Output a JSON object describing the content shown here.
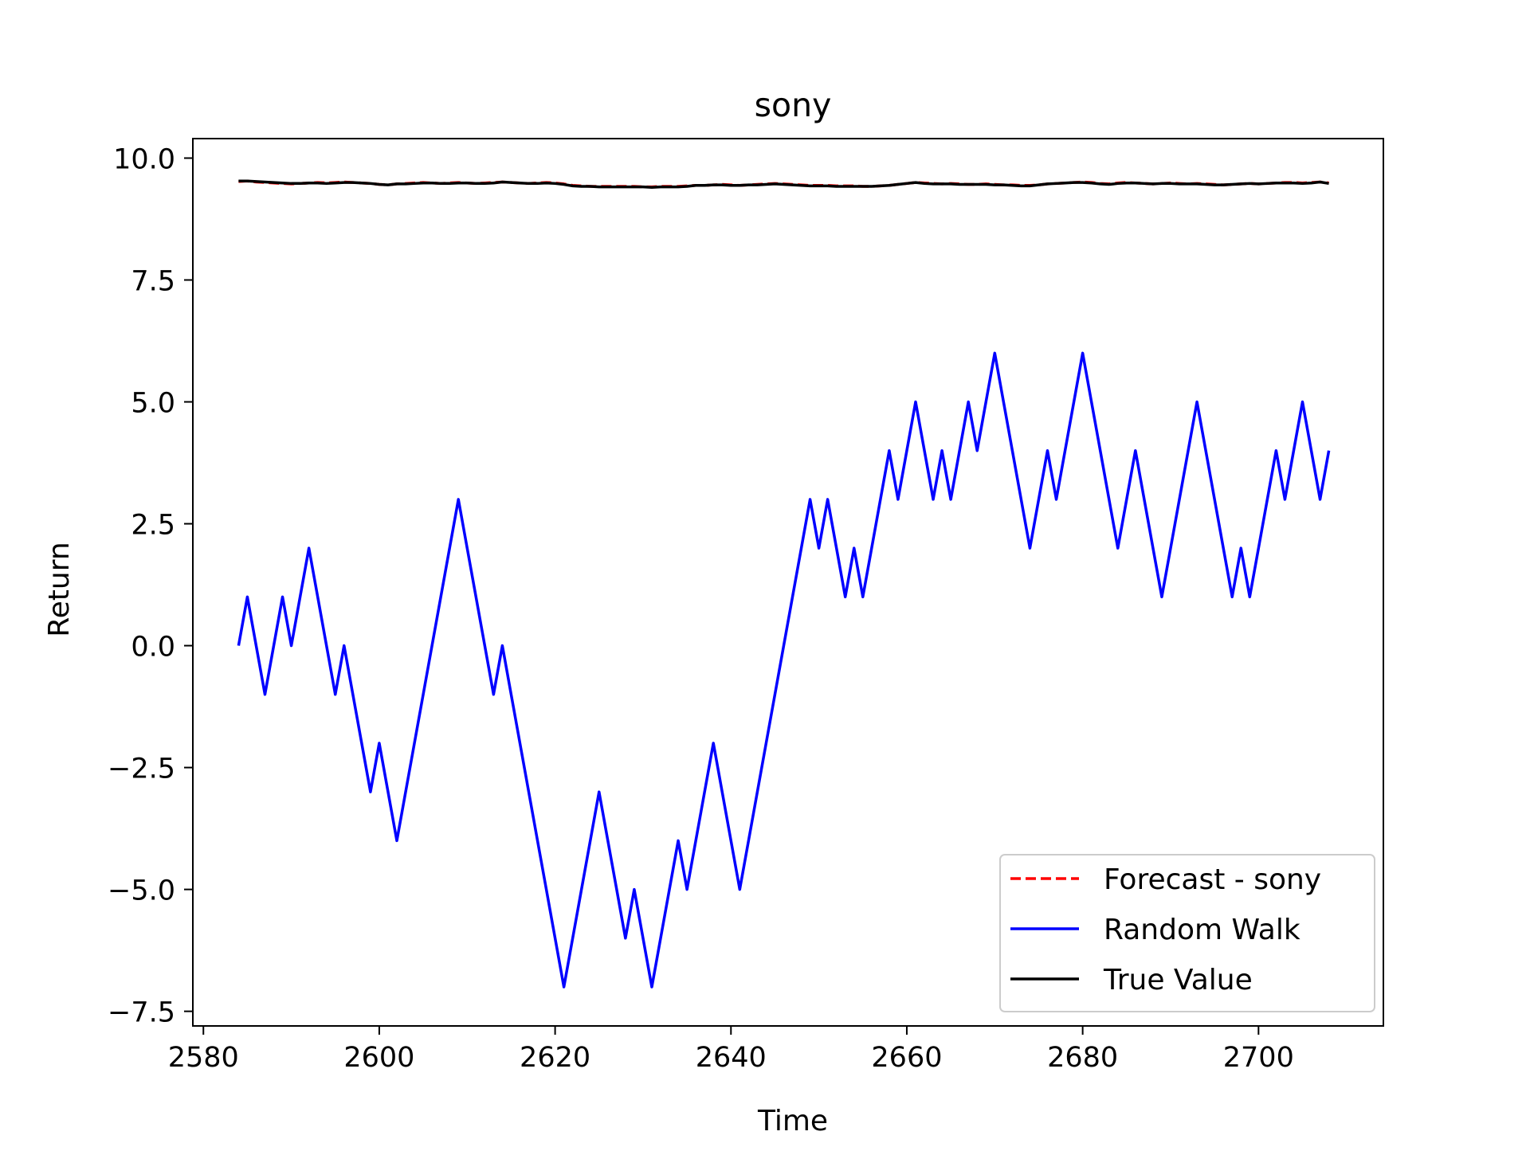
{
  "chart_data": {
    "type": "line",
    "title": "sony",
    "xlabel": "Time",
    "ylabel": "Return",
    "xlim": [
      2578.8,
      2714.2
    ],
    "ylim": [
      -7.8,
      10.4
    ],
    "xticks": [
      2580,
      2600,
      2620,
      2640,
      2660,
      2680,
      2700
    ],
    "yticks": [
      10.0,
      7.5,
      5.0,
      2.5,
      0.0,
      -2.5,
      -5.0,
      -7.5
    ],
    "ytick_labels": [
      "10.0",
      "7.5",
      "5.0",
      "2.5",
      "0.0",
      "−2.5",
      "−5.0",
      "−7.5"
    ],
    "grid": false,
    "legend_position": "lower-right",
    "x_start": 2584,
    "series": [
      {
        "name": "Forecast - sony",
        "color": "#ff0000",
        "style": "dashed",
        "values": [
          9.52,
          9.53,
          9.51,
          9.5,
          9.49,
          9.48,
          9.47,
          9.48,
          9.49,
          9.5,
          9.49,
          9.5,
          9.51,
          9.5,
          9.49,
          9.48,
          9.46,
          9.45,
          9.47,
          9.48,
          9.49,
          9.5,
          9.49,
          9.48,
          9.49,
          9.5,
          9.49,
          9.48,
          9.49,
          9.5,
          9.51,
          9.5,
          9.49,
          9.48,
          9.49,
          9.5,
          9.49,
          9.47,
          9.44,
          9.43,
          9.42,
          9.42,
          9.42,
          9.42,
          9.42,
          9.42,
          9.41,
          9.41,
          9.42,
          9.42,
          9.42,
          9.43,
          9.44,
          9.44,
          9.45,
          9.46,
          9.45,
          9.44,
          9.45,
          9.46,
          9.47,
          9.48,
          9.47,
          9.46,
          9.45,
          9.44,
          9.44,
          9.44,
          9.43,
          9.43,
          9.43,
          9.42,
          9.42,
          9.43,
          9.44,
          9.46,
          9.48,
          9.5,
          9.49,
          9.48,
          9.47,
          9.48,
          9.47,
          9.46,
          9.46,
          9.47,
          9.46,
          9.45,
          9.45,
          9.44,
          9.44,
          9.45,
          9.47,
          9.48,
          9.49,
          9.5,
          9.51,
          9.5,
          9.48,
          9.47,
          9.49,
          9.5,
          9.49,
          9.48,
          9.47,
          9.48,
          9.49,
          9.48,
          9.47,
          9.48,
          9.47,
          9.46,
          9.45,
          9.46,
          9.47,
          9.48,
          9.47,
          9.48,
          9.49,
          9.5,
          9.5,
          9.49,
          9.5,
          9.51,
          9.49
        ]
      },
      {
        "name": "Random Walk",
        "color": "#0000ff",
        "style": "solid",
        "values": [
          0,
          1,
          0,
          -1,
          0,
          1,
          0,
          1,
          2,
          1,
          0,
          -1,
          0,
          -1,
          -2,
          -3,
          -2,
          -3,
          -4,
          -3,
          -2,
          -1,
          0,
          1,
          2,
          3,
          2,
          1,
          0,
          -1,
          0,
          -1,
          -2,
          -3,
          -4,
          -5,
          -6,
          -7,
          -6,
          -5,
          -4,
          -3,
          -4,
          -5,
          -6,
          -5,
          -6,
          -7,
          -6,
          -5,
          -4,
          -5,
          -4,
          -3,
          -2,
          -3,
          -4,
          -5,
          -4,
          -3,
          -2,
          -1,
          0,
          1,
          2,
          3,
          2,
          3,
          2,
          1,
          2,
          1,
          2,
          3,
          4,
          3,
          4,
          5,
          4,
          3,
          4,
          3,
          4,
          5,
          4,
          5,
          6,
          5,
          4,
          3,
          2,
          3,
          4,
          3,
          4,
          5,
          6,
          5,
          4,
          3,
          2,
          3,
          4,
          3,
          2,
          1,
          2,
          3,
          4,
          5,
          4,
          3,
          2,
          1,
          2,
          1,
          2,
          3,
          4,
          3,
          4,
          5,
          4,
          3,
          4
        ]
      },
      {
        "name": "True Value",
        "color": "#000000",
        "style": "solid",
        "values": [
          9.53,
          9.53,
          9.52,
          9.51,
          9.5,
          9.49,
          9.48,
          9.48,
          9.49,
          9.49,
          9.48,
          9.49,
          9.5,
          9.5,
          9.49,
          9.48,
          9.46,
          9.45,
          9.47,
          9.47,
          9.48,
          9.49,
          9.49,
          9.48,
          9.48,
          9.49,
          9.49,
          9.48,
          9.48,
          9.49,
          9.51,
          9.5,
          9.49,
          9.48,
          9.48,
          9.49,
          9.48,
          9.46,
          9.43,
          9.42,
          9.42,
          9.41,
          9.41,
          9.41,
          9.41,
          9.41,
          9.41,
          9.4,
          9.41,
          9.41,
          9.41,
          9.42,
          9.44,
          9.44,
          9.45,
          9.45,
          9.44,
          9.44,
          9.45,
          9.45,
          9.46,
          9.47,
          9.46,
          9.45,
          9.44,
          9.43,
          9.43,
          9.43,
          9.42,
          9.42,
          9.42,
          9.42,
          9.42,
          9.43,
          9.44,
          9.46,
          9.48,
          9.5,
          9.48,
          9.47,
          9.47,
          9.47,
          9.46,
          9.46,
          9.46,
          9.46,
          9.45,
          9.45,
          9.44,
          9.43,
          9.43,
          9.45,
          9.47,
          9.48,
          9.49,
          9.5,
          9.5,
          9.49,
          9.47,
          9.46,
          9.48,
          9.49,
          9.49,
          9.48,
          9.47,
          9.48,
          9.48,
          9.47,
          9.47,
          9.47,
          9.46,
          9.45,
          9.45,
          9.46,
          9.47,
          9.48,
          9.47,
          9.48,
          9.49,
          9.49,
          9.49,
          9.48,
          9.49,
          9.51,
          9.48
        ]
      }
    ]
  }
}
